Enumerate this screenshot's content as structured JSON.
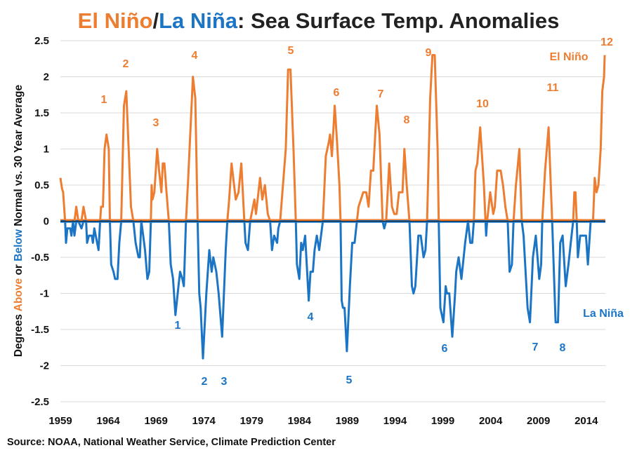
{
  "title": {
    "part1": "El Niño",
    "slash": "/",
    "part2": "La Niña",
    "rest": ": Sea Surface Temp. Anomalies"
  },
  "source": "Source: NOAA, National Weather Service, Climate Prediction Center",
  "colors": {
    "el_nino": "#ED7D31",
    "la_nina": "#1B75C4",
    "text": "#111111",
    "grid": "#D9D9D9"
  },
  "chart_data": {
    "type": "line",
    "title": "El Niño/La Niña: Sea Surface Temp. Anomalies",
    "ylabel": {
      "pre": "Degrees ",
      "above": "Above",
      "or": " or ",
      "below": "Below",
      "post": " Normal vs. 30 Year Average"
    },
    "xlim": [
      1959,
      2016
    ],
    "ylim": [
      -2.5,
      2.5
    ],
    "grid": true,
    "x_ticks": [
      "1959",
      "1964",
      "1969",
      "1974",
      "1979",
      "1984",
      "1989",
      "1994",
      "1999",
      "2004",
      "2009",
      "2014"
    ],
    "y_ticks": [
      "2.5",
      "2",
      "1.5",
      "1",
      "0.5",
      "0",
      "-0.5",
      "-1",
      "-1.5",
      "-2",
      "-2.5"
    ],
    "series": [
      {
        "name": "El Niño",
        "rule": "values above 0",
        "color": "#ED7D31"
      },
      {
        "name": "La Niña",
        "rule": "values below 0",
        "color": "#1B75C4"
      }
    ],
    "anomaly": {
      "x": [
        1959.0,
        1959.17,
        1959.29,
        1959.49,
        1959.59,
        1959.73,
        1960.03,
        1960.15,
        1960.32,
        1960.47,
        1960.66,
        1960.88,
        1961.2,
        1961.42,
        1961.69,
        1961.79,
        1961.98,
        1962.28,
        1962.4,
        1962.55,
        1962.84,
        1962.99,
        1963.16,
        1963.25,
        1963.45,
        1963.62,
        1963.82,
        1964.06,
        1964.18,
        1964.31,
        1964.55,
        1964.72,
        1964.97,
        1965.16,
        1965.36,
        1965.65,
        1965.89,
        1966.14,
        1966.38,
        1966.63,
        1966.87,
        1967.17,
        1967.31,
        1967.46,
        1967.66,
        1967.85,
        1968.1,
        1968.29,
        1968.46,
        1968.54,
        1968.63,
        1968.83,
        1969.12,
        1969.32,
        1969.56,
        1969.71,
        1969.88,
        1970.1,
        1970.34,
        1970.54,
        1970.78,
        1971.03,
        1971.35,
        1971.52,
        1971.76,
        1971.91,
        1972.13,
        1972.37,
        1972.86,
        1973.11,
        1973.35,
        1973.52,
        1973.67,
        1973.91,
        1974.26,
        1974.57,
        1974.82,
        1974.99,
        1975.31,
        1975.55,
        1975.92,
        1976.29,
        1976.46,
        1976.65,
        1976.9,
        1977.34,
        1977.63,
        1977.92,
        1978.24,
        1978.36,
        1978.61,
        1978.85,
        1979.29,
        1979.46,
        1979.88,
        1980.12,
        1980.39,
        1980.69,
        1980.93,
        1981.13,
        1981.35,
        1981.67,
        1981.79,
        1981.98,
        1982.28,
        1982.57,
        1982.81,
        1983.06,
        1983.38,
        1983.62,
        1983.74,
        1983.99,
        1984.18,
        1984.35,
        1984.6,
        1984.97,
        1985.16,
        1985.41,
        1985.58,
        1985.82,
        1986.07,
        1986.45,
        1986.76,
        1987.08,
        1987.2,
        1987.4,
        1987.69,
        1987.93,
        1988.18,
        1988.3,
        1988.42,
        1988.55,
        1988.72,
        1988.96,
        1989.28,
        1989.52,
        1989.77,
        1990.01,
        1990.18,
        1990.43,
        1990.67,
        1990.99,
        1991.23,
        1991.48,
        1991.72,
        1992.09,
        1992.38,
        1992.7,
        1992.87,
        1993.07,
        1993.39,
        1993.68,
        1993.92,
        1994.17,
        1994.41,
        1994.78,
        1994.98,
        1995.22,
        1995.51,
        1995.76,
        1995.93,
        1996.12,
        1996.44,
        1996.69,
        1996.98,
        1997.18,
        1997.35,
        1997.67,
        1997.91,
        1998.15,
        1998.45,
        1998.57,
        1998.74,
        1999.06,
        1999.3,
        1999.43,
        1999.67,
        1999.99,
        2000.28,
        2000.4,
        2000.65,
        2000.94,
        2001.33,
        2001.63,
        2001.87,
        2002.07,
        2002.24,
        2002.41,
        2002.6,
        2002.9,
        2003.29,
        2003.46,
        2003.53,
        2003.63,
        2003.95,
        2004.27,
        2004.44,
        2004.68,
        2005.05,
        2005.29,
        2005.54,
        2005.78,
        2005.98,
        2006.22,
        2006.39,
        2006.64,
        2007.0,
        2007.25,
        2007.44,
        2007.86,
        2008.11,
        2008.42,
        2008.72,
        2009.08,
        2009.28,
        2009.4,
        2009.69,
        2010.06,
        2010.43,
        2010.79,
        2011.04,
        2011.28,
        2011.53,
        2011.85,
        2012.14,
        2012.38,
        2012.63,
        2012.75,
        2012.87,
        2013.0,
        2013.12,
        2013.36,
        2013.97,
        2014.17,
        2014.46,
        2014.71,
        2014.88,
        2015.07,
        2015.27,
        2015.51,
        2015.68,
        2015.86,
        2015.93
      ],
      "y": [
        0.6,
        0.45,
        0.4,
        0,
        -0.3,
        -0.1,
        -0.1,
        -0.2,
        0,
        -0.2,
        0.2,
        0,
        -0.1,
        0.2,
        0,
        -0.3,
        -0.2,
        -0.2,
        -0.3,
        -0.1,
        -0.3,
        -0.4,
        0,
        0.2,
        0.2,
        1.0,
        1.2,
        1.0,
        0,
        -0.6,
        -0.7,
        -0.8,
        -0.8,
        -0.3,
        0,
        1.6,
        1.8,
        1.0,
        0.2,
        0,
        -0.3,
        -0.5,
        -0.5,
        0,
        -0.2,
        -0.4,
        -0.8,
        -0.7,
        0,
        0.5,
        0.3,
        0.4,
        1.0,
        0.7,
        0.4,
        0.8,
        0.8,
        0.4,
        0,
        -0.6,
        -0.8,
        -1.3,
        -0.9,
        -0.7,
        -0.8,
        -0.9,
        0,
        0.6,
        2.0,
        1.7,
        0,
        -1.0,
        -1.2,
        -1.9,
        -1.0,
        -0.4,
        -0.7,
        -0.5,
        -0.7,
        -1.0,
        -1.6,
        -0.4,
        0,
        0.3,
        0.8,
        0.3,
        0.4,
        0.8,
        0,
        -0.3,
        -0.4,
        0,
        0.3,
        0.1,
        0.6,
        0.3,
        0.5,
        0.1,
        0,
        -0.4,
        -0.2,
        -0.3,
        -0.1,
        0,
        0.5,
        1.0,
        2.1,
        2.1,
        1.0,
        0,
        -0.6,
        -0.8,
        -0.3,
        -0.4,
        -0.2,
        -1.1,
        -0.7,
        -0.7,
        -0.4,
        -0.2,
        -0.4,
        0,
        0.9,
        1.1,
        1.2,
        0.9,
        1.6,
        1.1,
        0.5,
        0,
        -1.1,
        -1.2,
        -1.2,
        -1.8,
        -0.9,
        -0.3,
        -0.3,
        0,
        0.2,
        0.3,
        0.4,
        0.4,
        0.2,
        0.7,
        0.7,
        1.6,
        1.2,
        0,
        -0.1,
        0,
        0.8,
        0.2,
        0.1,
        0.1,
        0.4,
        0.4,
        1.0,
        0.5,
        0,
        -0.9,
        -1.0,
        -0.9,
        -0.2,
        -0.2,
        -0.5,
        -0.4,
        0,
        1.7,
        2.3,
        2.3,
        1.0,
        0,
        -1.2,
        -1.4,
        -0.9,
        -1.0,
        -1.0,
        -1.6,
        -1.0,
        -0.7,
        -0.5,
        -0.8,
        -0.3,
        0,
        -0.3,
        -0.3,
        0,
        0.7,
        0.8,
        1.3,
        0.5,
        0,
        -0.2,
        0,
        0.4,
        0.1,
        0.2,
        0.7,
        0.7,
        0.5,
        0.2,
        0,
        -0.7,
        -0.6,
        0,
        0.5,
        1.0,
        0,
        -0.2,
        -1.2,
        -1.4,
        -0.5,
        -0.2,
        -0.8,
        -0.6,
        0,
        0.7,
        1.3,
        0,
        -1.4,
        -1.4,
        -0.3,
        -0.2,
        -0.9,
        -0.6,
        -0.3,
        0,
        0.4,
        0.4,
        0,
        -0.5,
        -0.2,
        -0.2,
        -0.6,
        0,
        0,
        0.6,
        0.4,
        0.5,
        1.0,
        1.8,
        2.0,
        2.3
      ]
    },
    "annotations": {
      "el_nino_label": "El Niño",
      "la_nina_label": "La Niña",
      "el_nino_events": [
        "1",
        "2",
        "3",
        "4",
        "5",
        "6",
        "7",
        "8",
        "9",
        "10",
        "11",
        "12"
      ],
      "la_nina_events": [
        "1",
        "2",
        "3",
        "4",
        "5",
        "6",
        "7",
        "8"
      ]
    }
  }
}
